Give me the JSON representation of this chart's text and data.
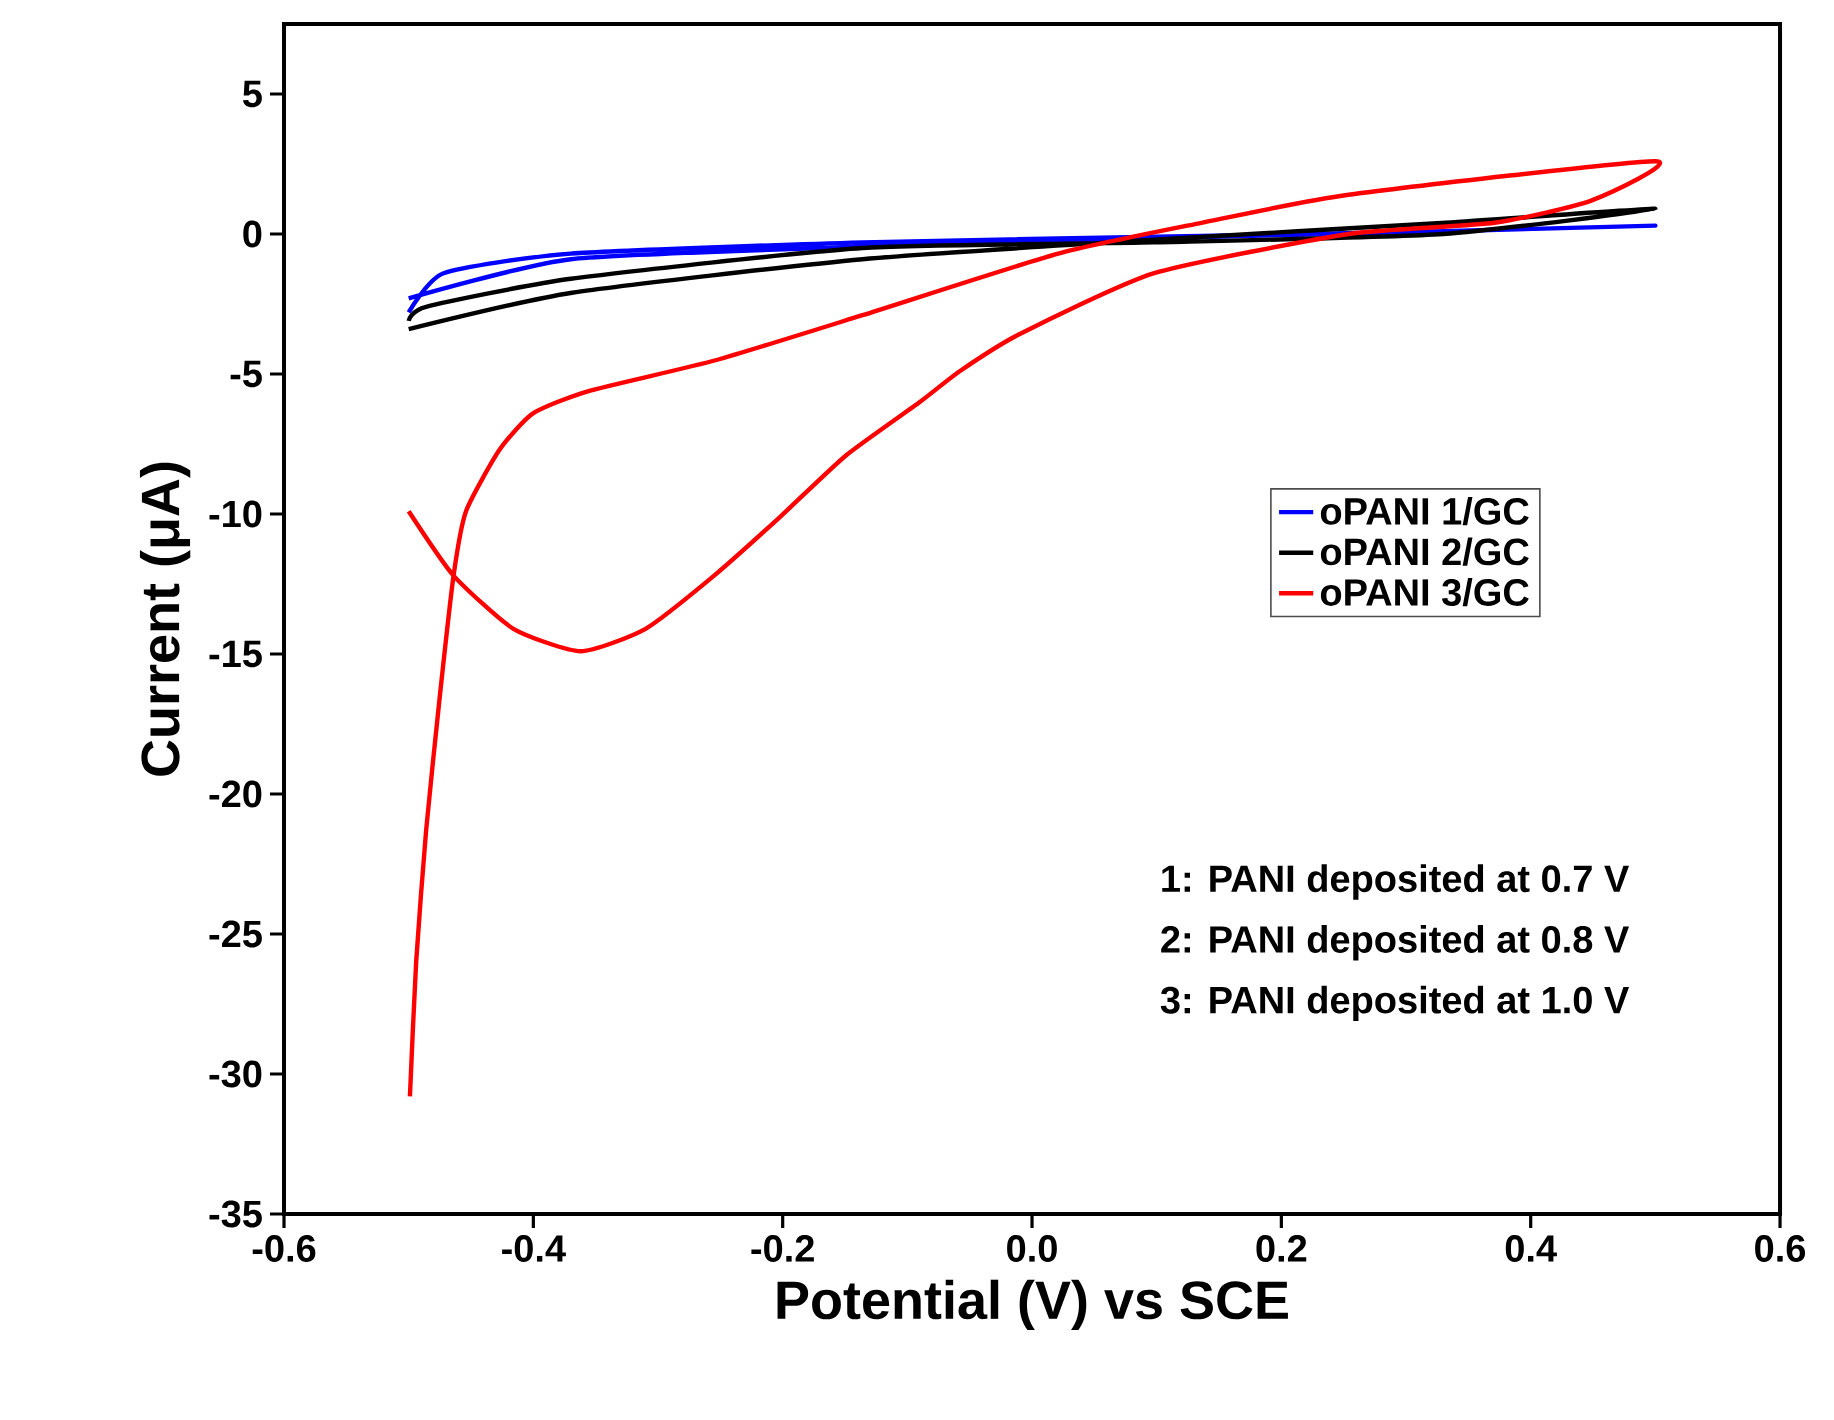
{
  "chart_data": {
    "type": "line",
    "xlabel": "Potential (V) vs SCE",
    "ylabel": "Current (μA)",
    "xlim": [
      -0.6,
      0.6
    ],
    "ylim": [
      -35,
      7.5
    ],
    "xticks": [
      -0.6,
      -0.4,
      -0.2,
      {
        "value": 0,
        "label": "0.0"
      },
      0.2,
      0.4,
      0.6
    ],
    "yticks": [
      -35,
      -30,
      -25,
      -20,
      -15,
      -10,
      -5,
      0,
      5
    ],
    "legend": "right",
    "marker": "none",
    "line_style": "solid",
    "grid": false,
    "annotations": [
      "1: PANI deposited at 0.7 V",
      "2: PANI deposited at 0.8 V",
      "3: PANI deposited at 1.0 V"
    ],
    "series": [
      {
        "name": "oPANI 1/GC",
        "color": "#0000ff",
        "x": [
          -0.5,
          -0.37,
          -0.136,
          0.098,
          0.33,
          0.5,
          0.33,
          0.1,
          -0.136,
          -0.37,
          -0.472,
          -0.5
        ],
        "values": [
          -2.3,
          -0.9,
          -0.45,
          -0.15,
          0.1,
          0.3,
          0.1,
          -0.1,
          -0.3,
          -0.7,
          -1.4,
          -2.8
        ]
      },
      {
        "name": "oPANI 2/GC",
        "color": "#000000",
        "x": [
          -0.5,
          -0.369,
          -0.136,
          0.098,
          0.332,
          0.5,
          0.33,
          0.098,
          -0.136,
          -0.37,
          -0.486,
          -0.5
        ],
        "values": [
          -3.4,
          -2.1,
          -0.9,
          -0.2,
          0.4,
          0.9,
          0.0,
          -0.3,
          -0.5,
          -1.6,
          -2.6,
          -3.1
        ]
      },
      {
        "name": "oPANI 3/GC",
        "color": "#ff0000",
        "x": [
          -0.5,
          -0.464,
          -0.416,
          -0.362,
          -0.31,
          -0.255,
          -0.202,
          -0.149,
          -0.09,
          -0.058,
          -0.011,
          0.098,
          0.254,
          0.371,
          0.449,
          0.5,
          0.254,
          0.136,
          0.021,
          -0.136,
          -0.253,
          -0.355,
          -0.4,
          -0.427,
          -0.454,
          -0.464,
          -0.475,
          -0.486,
          -0.494,
          -0.499
        ],
        "values": [
          -9.9,
          -12.2,
          -14.1,
          -14.9,
          -14.1,
          -12.2,
          -10.1,
          -7.9,
          -6.0,
          -4.9,
          -3.6,
          -1.4,
          0.0,
          0.4,
          1.2,
          2.6,
          1.4,
          0.4,
          -0.7,
          -2.9,
          -4.5,
          -5.6,
          -6.4,
          -7.7,
          -9.9,
          -12.2,
          -16.5,
          -21.3,
          -26.0,
          -30.8
        ]
      }
    ]
  }
}
